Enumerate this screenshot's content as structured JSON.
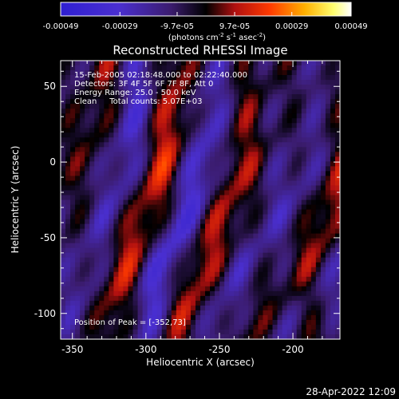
{
  "colorbar": {
    "ticks": [
      "-0.00049",
      "-0.00029",
      "-9.7e-05",
      "9.7e-05",
      "0.00029",
      "0.00049"
    ],
    "tick_values": [
      -0.00049,
      -0.00029,
      -9.7e-05,
      9.7e-05,
      0.00029,
      0.00049
    ],
    "range": [
      -0.00049,
      0.00049
    ],
    "units_prefix": "(photons cm",
    "units_exp1": "-2",
    "units_mid": " s",
    "units_exp2": "-1",
    "units_mid2": " asec",
    "units_exp3": "-2",
    "units_suffix": ")"
  },
  "chart_data": {
    "type": "heatmap",
    "title": "Reconstructed RHESSI Image",
    "xlabel": "Heliocentric X (arcsec)",
    "ylabel": "Heliocentric Y (arcsec)",
    "xlim": [
      -358,
      -168
    ],
    "ylim": [
      -117,
      67
    ],
    "xticks": [
      -350,
      -300,
      -250,
      -200
    ],
    "yticks": [
      50,
      0,
      -50,
      -100
    ],
    "colormap": "rainbow-to-hot (purple / blue / black / red / orange / yellow / white)",
    "value_range": [
      -0.00049,
      0.00049
    ],
    "info_lines": [
      "15-Feb-2005 02:18:48.000 to 02:22:40.000",
      "Detectors: 3F 4F 5F 6F 7F 8F, Att 0",
      "Energy Range: 25.0 - 50.0 keV",
      "Clean     Total counts: 5.07E+03"
    ],
    "peak_label": "Position of Peak = [-352,73]",
    "peak_position": [
      -352,
      73
    ]
  },
  "timestamp": "28-Apr-2022 12:09"
}
